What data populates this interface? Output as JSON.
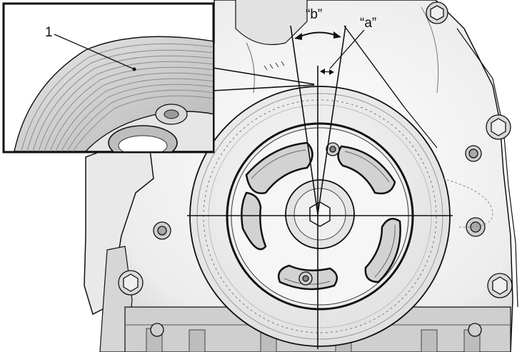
{
  "labels": {
    "callout_1": "1",
    "angle_a": "“a”",
    "angle_b": "“b”"
  },
  "colors": {
    "line": "#111111",
    "metal_light": "#f2f2f2",
    "metal_mid": "#d4d4d4",
    "metal_dark": "#9a9a9a",
    "background": "#ffffff"
  }
}
